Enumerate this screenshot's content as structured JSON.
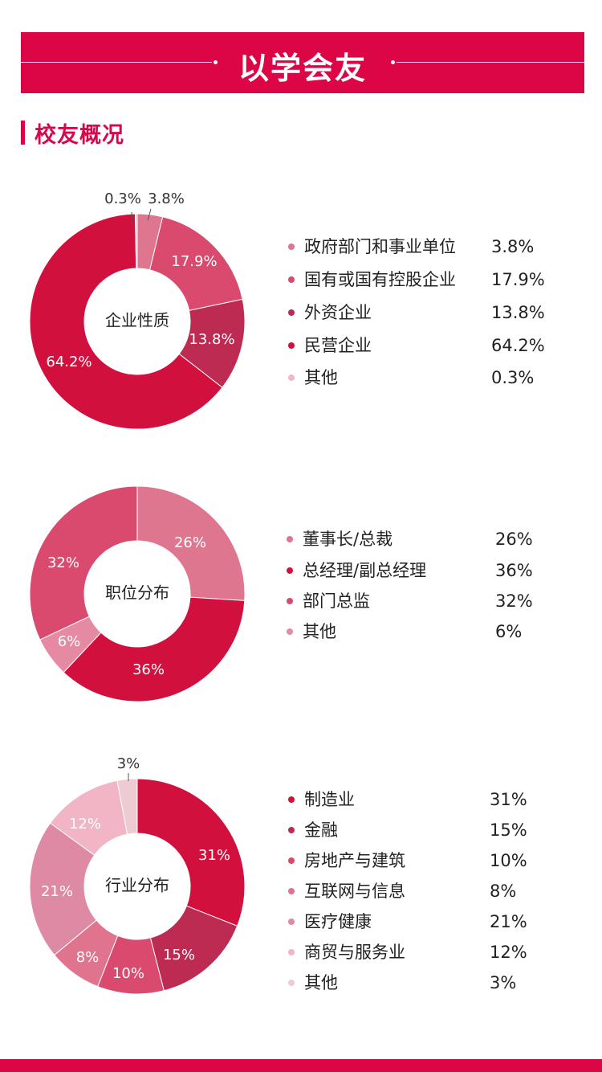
{
  "header": {
    "title": "以学会友"
  },
  "section": {
    "title": "校友概况"
  },
  "chart_data": [
    {
      "type": "pie",
      "donut": true,
      "center_label": "企业性质",
      "categories": [
        "政府部门和事业单位",
        "国有或国有控股企业",
        "外资企业",
        "民营企业",
        "其他"
      ],
      "values": [
        3.8,
        17.9,
        13.8,
        64.2,
        0.3
      ],
      "value_labels": [
        "3.8%",
        "17.9%",
        "13.8%",
        "64.2%",
        "0.3%"
      ],
      "colors": [
        "#df7690",
        "#d94a6e",
        "#bd2a52",
        "#d2103e",
        "#f1b8c8"
      ],
      "label_colors": [
        "#333333",
        "#ffffff",
        "#ffffff",
        "#ffffff",
        "#333333"
      ],
      "legend": "right"
    },
    {
      "type": "pie",
      "donut": true,
      "center_label": "职位分布",
      "categories": [
        "董事长/总裁",
        "总经理/副总经理",
        "部门总监",
        "其他"
      ],
      "values": [
        26,
        36,
        32,
        6
      ],
      "value_labels": [
        "26%",
        "36%",
        "32%",
        "6%"
      ],
      "colors": [
        "#df7690",
        "#d2103e",
        "#d94a6e",
        "#e58aa2"
      ],
      "label_colors": [
        "#ffffff",
        "#ffffff",
        "#ffffff",
        "#ffffff"
      ],
      "legend": "right",
      "draw_order": [
        0,
        1,
        3,
        2
      ]
    },
    {
      "type": "pie",
      "donut": true,
      "center_label": "行业分布",
      "categories": [
        "制造业",
        "金融",
        "房地产与建筑",
        "互联网与信息",
        "医疗健康",
        "商贸与服务业",
        "其他"
      ],
      "values": [
        31,
        15,
        10,
        8,
        21,
        12,
        3
      ],
      "value_labels": [
        "31%",
        "15%",
        "10%",
        "8%",
        "21%",
        "12%",
        "3%"
      ],
      "colors": [
        "#d2103e",
        "#bd2a52",
        "#d94a6e",
        "#e0738d",
        "#df8aa4",
        "#f2b5c5",
        "#eecbd3"
      ],
      "label_colors": [
        "#ffffff",
        "#ffffff",
        "#ffffff",
        "#ffffff",
        "#ffffff",
        "#ffffff",
        "#333333"
      ],
      "legend": "right"
    }
  ]
}
